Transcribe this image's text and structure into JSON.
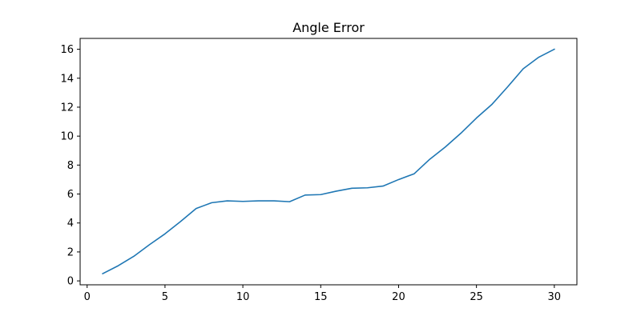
{
  "chart_data": {
    "type": "line",
    "title": "Angle Error",
    "xlabel": "",
    "ylabel": "",
    "xlim": [
      -0.45,
      31.45
    ],
    "ylim": [
      -0.27,
      16.75
    ],
    "xticks": [
      0,
      5,
      10,
      15,
      20,
      25,
      30
    ],
    "yticks": [
      0,
      2,
      4,
      6,
      8,
      10,
      12,
      14,
      16
    ],
    "grid": false,
    "legend": "none",
    "series": [
      {
        "color": "#1f77b4",
        "x": [
          1,
          2,
          3,
          4,
          5,
          6,
          7,
          8,
          9,
          10,
          11,
          12,
          13,
          14,
          15,
          16,
          17,
          18,
          19,
          20,
          21,
          22,
          23,
          24,
          25,
          26,
          27,
          28,
          29,
          30
        ],
        "y": [
          0.5,
          1.05,
          1.7,
          2.5,
          3.25,
          4.1,
          5.0,
          5.4,
          5.53,
          5.49,
          5.53,
          5.53,
          5.47,
          5.93,
          5.96,
          6.2,
          6.4,
          6.43,
          6.55,
          7.0,
          7.4,
          8.4,
          9.25,
          10.2,
          11.25,
          12.2,
          13.4,
          14.65,
          15.45,
          16.0
        ]
      }
    ]
  }
}
